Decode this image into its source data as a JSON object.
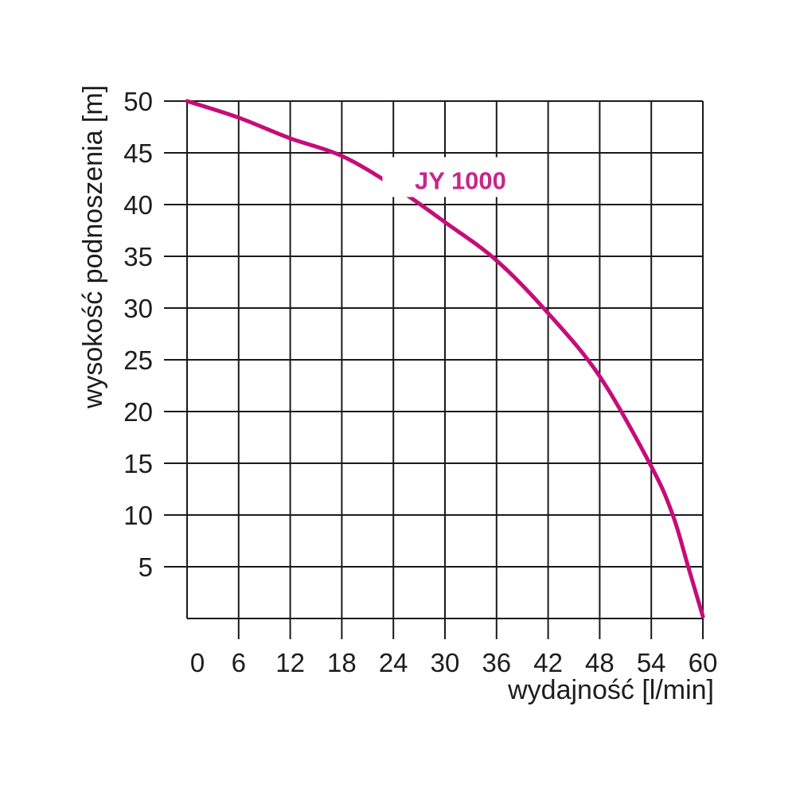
{
  "page": {
    "background": "#ffffff"
  },
  "chart_data": {
    "type": "line",
    "title": "JY 1000",
    "xlabel": "wydajność [l/min]",
    "ylabel": "wysokość podnoszenia [m]",
    "x_ticks": [
      0,
      6,
      12,
      18,
      24,
      30,
      36,
      42,
      48,
      54,
      60
    ],
    "y_ticks": [
      5,
      10,
      15,
      20,
      25,
      30,
      35,
      40,
      45,
      50
    ],
    "xlim": [
      0,
      60
    ],
    "ylim": [
      0,
      50
    ],
    "grid": true,
    "legend_position": "none",
    "grid_color": "#1a1a1a",
    "text_color": "#1d1d1d",
    "series": [
      {
        "name": "JY 1000",
        "color": "#c50d79",
        "points": [
          [
            0,
            50
          ],
          [
            6,
            48.4
          ],
          [
            12,
            46.4
          ],
          [
            18,
            44.7
          ],
          [
            24,
            41.8
          ],
          [
            30,
            38.3
          ],
          [
            36,
            34.6
          ],
          [
            42,
            29.5
          ],
          [
            48,
            23.4
          ],
          [
            54,
            14.7
          ],
          [
            56.5,
            10
          ],
          [
            58.3,
            5
          ],
          [
            60,
            0.2
          ]
        ]
      }
    ],
    "curve_label": {
      "text": "JY 1000",
      "color": "#c7268b",
      "x": 31.8,
      "y": 41.5
    }
  }
}
